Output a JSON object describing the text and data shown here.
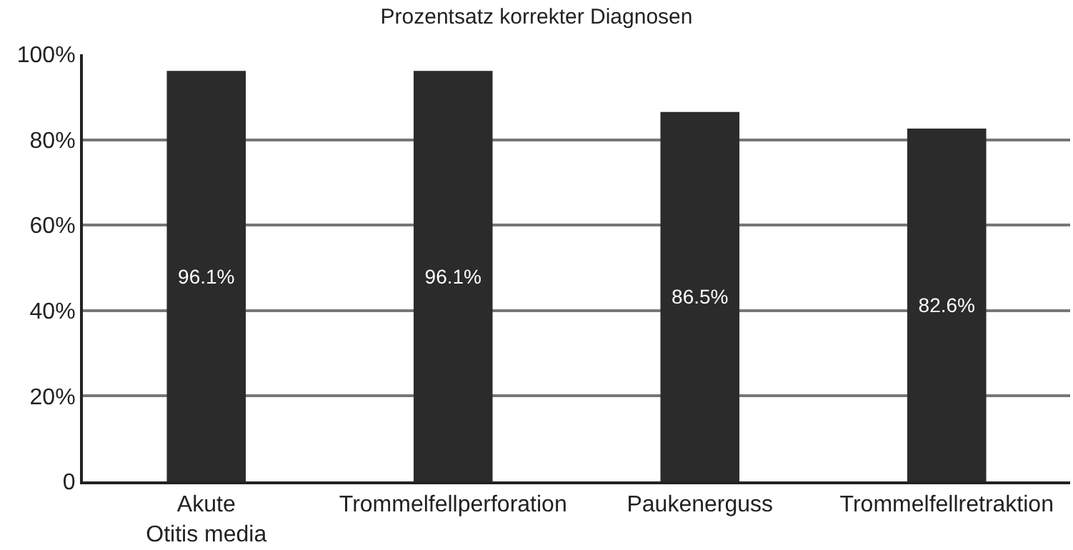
{
  "chart_data": {
    "type": "bar",
    "title": "Prozentsatz korrekter Diagnosen",
    "categories": [
      "Akute\nOtitis media",
      "Trommelfellperforation",
      "Paukenerguss",
      "Trommelfellretraktion"
    ],
    "values": [
      96.1,
      96.1,
      86.5,
      82.6
    ],
    "value_labels": [
      "96.1%",
      "96.1%",
      "86.5%",
      "82.6%"
    ],
    "color": "#2b2b2b",
    "ylim": [
      0,
      100
    ],
    "yticks": [
      0,
      {
        "value": 20,
        "label": "20%"
      },
      {
        "value": 40,
        "label": "40%"
      },
      {
        "value": 60,
        "label": "60%"
      },
      {
        "value": 80,
        "label": "80%"
      },
      {
        "value": 100,
        "label": "100%"
      }
    ],
    "grid": "y",
    "legend": false
  }
}
